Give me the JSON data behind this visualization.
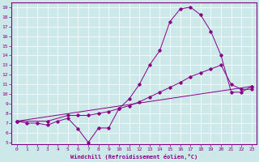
{
  "xlabel": "Windchill (Refroidissement éolien,°C)",
  "bg_color": "#cce8e8",
  "line_color": "#880088",
  "xlim": [
    -0.5,
    23.5
  ],
  "ylim": [
    4.8,
    19.5
  ],
  "xticks": [
    0,
    1,
    2,
    3,
    4,
    5,
    6,
    7,
    8,
    9,
    10,
    11,
    12,
    13,
    14,
    15,
    16,
    17,
    18,
    19,
    20,
    21,
    22,
    23
  ],
  "yticks": [
    5,
    6,
    7,
    8,
    9,
    10,
    11,
    12,
    13,
    14,
    15,
    16,
    17,
    18,
    19
  ],
  "curve1_x": [
    0,
    1,
    2,
    3,
    4,
    5,
    6,
    7,
    8,
    9,
    10,
    11,
    12,
    13,
    14,
    15,
    16,
    17,
    18,
    19,
    20,
    21,
    22,
    23
  ],
  "curve1_y": [
    7.2,
    7.0,
    7.0,
    6.8,
    7.2,
    7.5,
    6.4,
    5.0,
    6.5,
    6.5,
    8.5,
    9.5,
    11.0,
    13.0,
    14.5,
    17.5,
    18.8,
    19.0,
    18.2,
    16.5,
    14.0,
    10.2,
    10.2,
    10.8
  ],
  "curve2_x": [
    0,
    3,
    5,
    6,
    7,
    8,
    9,
    10,
    11,
    12,
    13,
    14,
    15,
    16,
    17,
    18,
    19,
    20,
    21,
    22,
    23
  ],
  "curve2_y": [
    7.2,
    7.2,
    7.8,
    7.8,
    7.8,
    8.0,
    8.2,
    8.5,
    8.8,
    9.2,
    9.7,
    10.2,
    10.7,
    11.2,
    11.8,
    12.2,
    12.6,
    13.0,
    11.0,
    10.5,
    10.5
  ],
  "curve3_x": [
    0,
    23
  ],
  "curve3_y": [
    7.2,
    10.8
  ]
}
